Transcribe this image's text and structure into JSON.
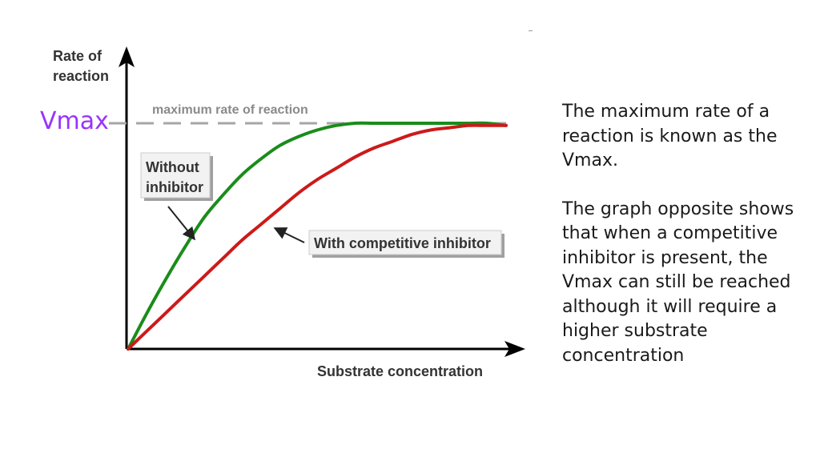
{
  "chart_data": {
    "type": "line",
    "title": "",
    "xlabel": "Substrate concentration",
    "ylabel": [
      "Rate of",
      "reaction"
    ],
    "xlim": [
      0,
      1
    ],
    "ylim": [
      0,
      1
    ],
    "grid": false,
    "reference_line": {
      "label": "maximum rate of reaction",
      "y": 1.0,
      "style": "dashed",
      "color": "#a6a6a6"
    },
    "vmax_label": "Vmax",
    "series": [
      {
        "name": "Without inhibitor",
        "name_lines": [
          "Without",
          "inhibitor"
        ],
        "color": "#1a8c1a",
        "x": [
          0,
          0.05,
          0.1,
          0.15,
          0.2,
          0.25,
          0.3,
          0.35,
          0.4,
          0.45,
          0.5,
          0.55,
          0.6,
          0.65,
          0.7,
          0.75,
          0.8,
          0.85,
          0.9,
          0.95,
          1.0
        ],
        "y": [
          0,
          0.16,
          0.31,
          0.45,
          0.58,
          0.68,
          0.77,
          0.84,
          0.9,
          0.94,
          0.97,
          0.99,
          1.0,
          1.0,
          1.0,
          1.0,
          1.0,
          1.0,
          1.0,
          1.0,
          0.99
        ]
      },
      {
        "name": "With competitive inhibitor",
        "name_lines": [
          "With competitive inhibitor"
        ],
        "color": "#cc1a1a",
        "x": [
          0,
          0.05,
          0.1,
          0.15,
          0.2,
          0.25,
          0.3,
          0.35,
          0.4,
          0.45,
          0.5,
          0.55,
          0.6,
          0.65,
          0.7,
          0.75,
          0.8,
          0.85,
          0.9,
          0.95,
          1.0
        ],
        "y": [
          0,
          0.08,
          0.16,
          0.24,
          0.32,
          0.4,
          0.48,
          0.55,
          0.62,
          0.69,
          0.75,
          0.8,
          0.85,
          0.89,
          0.92,
          0.95,
          0.97,
          0.98,
          0.99,
          0.99,
          0.99
        ]
      }
    ]
  },
  "explanation": {
    "paragraph_1": "The maximum rate of a reaction is known as the Vmax.",
    "paragraph_2": "The graph opposite shows that when a competitive inhibitor is present, the Vmax can still be reached although it will require a higher substrate concentration"
  },
  "colors": {
    "axis": "#000000",
    "vmax": "#9933ff",
    "label_box_bg": "#f2f2f2",
    "label_box_border": "#cccccc",
    "label_box_shadow": "#a0a0a0"
  }
}
